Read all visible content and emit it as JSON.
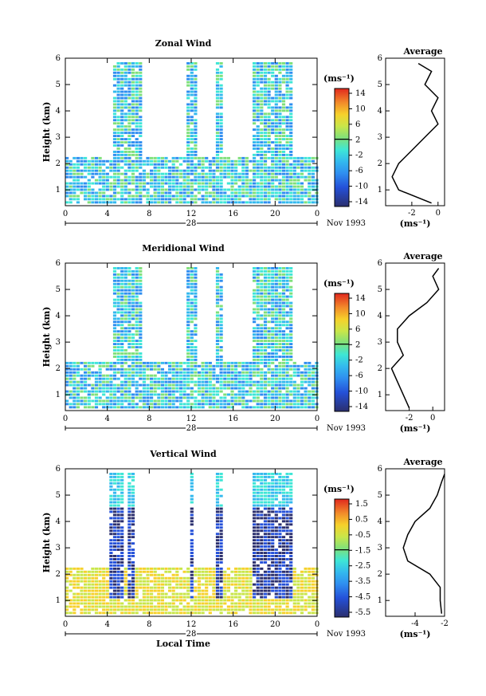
{
  "panels": [
    {
      "title": "Zonal Wind",
      "ylabel": "Height (km)",
      "yticks": [
        "1",
        "2",
        "3",
        "4",
        "5",
        "6"
      ],
      "xticks": [
        "0",
        "4",
        "8",
        "12",
        "16",
        "20",
        "0"
      ],
      "day_label": "28",
      "month_label": "Nov 1993",
      "colorbar": {
        "unit": "(ms⁻¹)",
        "ticks": [
          "14",
          "10",
          "6",
          "2",
          "-2",
          "-6",
          "-10",
          "-14"
        ]
      },
      "avg": {
        "title": "Average",
        "xticks": [
          "-2",
          "0"
        ],
        "xlabel": "(ms⁻¹)",
        "yticks": [
          "1",
          "2",
          "3",
          "4",
          "5",
          "6"
        ]
      }
    },
    {
      "title": "Meridional Wind",
      "ylabel": "Height (km)",
      "yticks": [
        "1",
        "2",
        "3",
        "4",
        "5",
        "6"
      ],
      "xticks": [
        "0",
        "4",
        "8",
        "12",
        "16",
        "20",
        "0"
      ],
      "day_label": "28",
      "month_label": "Nov 1993",
      "colorbar": {
        "unit": "(ms⁻¹)",
        "ticks": [
          "14",
          "10",
          "6",
          "2",
          "-2",
          "-6",
          "-10",
          "-14"
        ]
      },
      "avg": {
        "title": "Average",
        "xticks": [
          "-2",
          "0"
        ],
        "xlabel": "(ms⁻¹)",
        "yticks": [
          "1",
          "2",
          "3",
          "4",
          "5",
          "6"
        ]
      }
    },
    {
      "title": "Vertical Wind",
      "ylabel": "Height (km)",
      "yticks": [
        "1",
        "2",
        "3",
        "4",
        "5",
        "6"
      ],
      "xticks": [
        "0",
        "4",
        "8",
        "12",
        "16",
        "20",
        "0"
      ],
      "day_label": "28",
      "month_label": "Nov 1993",
      "xlabel": "Local Time",
      "colorbar": {
        "unit": "(ms⁻¹)",
        "ticks": [
          "1.5",
          "0.5",
          "-0.5",
          "-1.5",
          "-2.5",
          "-3.5",
          "-4.5",
          "-5.5"
        ]
      },
      "avg": {
        "title": "Average",
        "xticks": [
          "-4",
          "-2"
        ],
        "xlabel": "(ms⁻¹)",
        "yticks": [
          "1",
          "2",
          "3",
          "4",
          "5",
          "6"
        ]
      }
    }
  ],
  "chart_data": [
    {
      "type": "heatmap",
      "title": "Zonal Wind",
      "xlabel": "",
      "ylabel": "Height (km)",
      "xlim": [
        0,
        24
      ],
      "ylim": [
        0.4,
        6
      ],
      "colorbar_range": [
        -14,
        14
      ],
      "echo_columns_hours": [
        [
          0,
          23.5
        ]
      ],
      "average_profile": {
        "xlim": [
          -4,
          0.5
        ],
        "height": [
          0.5,
          1.0,
          1.5,
          2.0,
          2.5,
          3.0,
          3.5,
          4.0,
          4.5,
          5.0,
          5.5,
          5.8
        ],
        "value": [
          -0.5,
          -3.0,
          -3.5,
          -3.0,
          -2.0,
          -1.0,
          0.0,
          -0.5,
          0.0,
          -1.0,
          -0.5,
          -1.5
        ]
      },
      "colors": {
        "low": "#2b2f7a",
        "high": "#e0281e"
      }
    },
    {
      "type": "heatmap",
      "title": "Meridional Wind",
      "xlabel": "",
      "ylabel": "Height (km)",
      "xlim": [
        0,
        24
      ],
      "ylim": [
        0.4,
        6
      ],
      "colorbar_range": [
        -14,
        14
      ],
      "average_profile": {
        "xlim": [
          -4,
          1
        ],
        "height": [
          0.5,
          1.0,
          1.5,
          2.0,
          2.5,
          3.0,
          3.5,
          4.0,
          4.5,
          5.0,
          5.5,
          5.8
        ],
        "value": [
          -2.0,
          -2.5,
          -3.0,
          -3.5,
          -2.5,
          -3.0,
          -3.0,
          -2.0,
          -0.5,
          0.5,
          0.0,
          0.5
        ]
      }
    },
    {
      "type": "heatmap",
      "title": "Vertical Wind",
      "xlabel": "Local Time",
      "ylabel": "Height (km)",
      "xlim": [
        0,
        24
      ],
      "ylim": [
        0.4,
        6
      ],
      "colorbar_range": [
        -5.5,
        1.5
      ],
      "average_profile": {
        "xlim": [
          -6,
          -2
        ],
        "height": [
          0.5,
          1.0,
          1.5,
          2.0,
          2.5,
          3.0,
          3.5,
          4.0,
          4.5,
          5.0,
          5.5,
          5.8
        ],
        "value": [
          -2.2,
          -2.3,
          -2.3,
          -3.0,
          -4.5,
          -4.8,
          -4.5,
          -4.0,
          -3.0,
          -2.5,
          -2.2,
          -2.0
        ]
      }
    }
  ]
}
